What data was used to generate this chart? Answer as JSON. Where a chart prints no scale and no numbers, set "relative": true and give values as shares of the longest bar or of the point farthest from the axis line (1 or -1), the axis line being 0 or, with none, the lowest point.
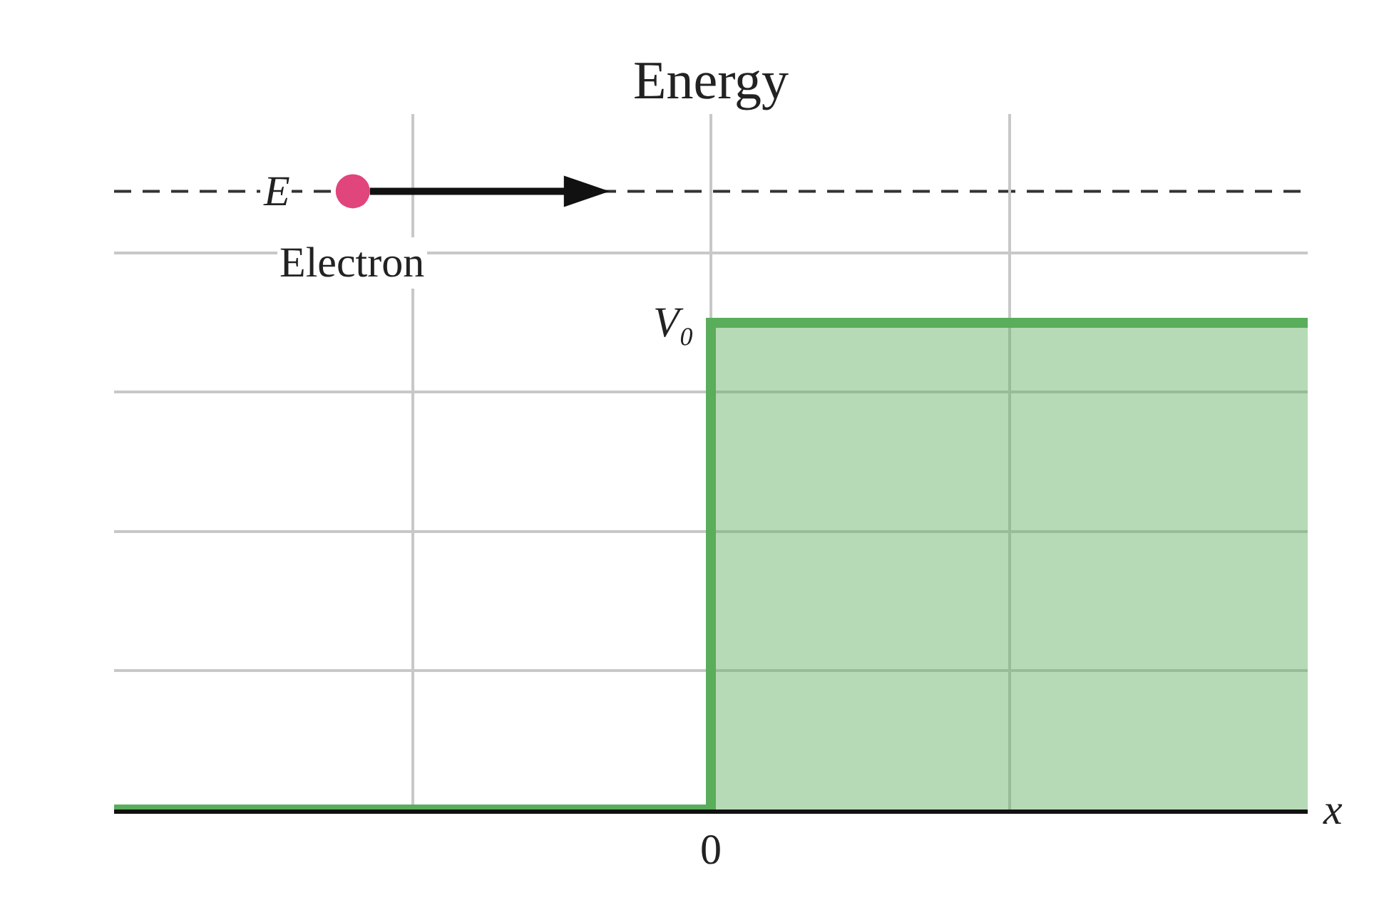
{
  "chart_data": {
    "type": "area",
    "ylabel": "Energy",
    "xlabel": "x",
    "relative": true,
    "grid": true,
    "categories": [
      null,
      null,
      null,
      null,
      null
    ],
    "series": [
      {
        "color": "#5aad5a",
        "values": [
          0,
          0,
          1,
          1,
          1
        ]
      }
    ],
    "ref_lines": [
      {
        "axis": "y",
        "value": 1.27,
        "label": "E",
        "line_style": "dashed",
        "color": "#333333"
      }
    ],
    "annotations": [
      "V₀",
      "0",
      "Electron"
    ]
  }
}
